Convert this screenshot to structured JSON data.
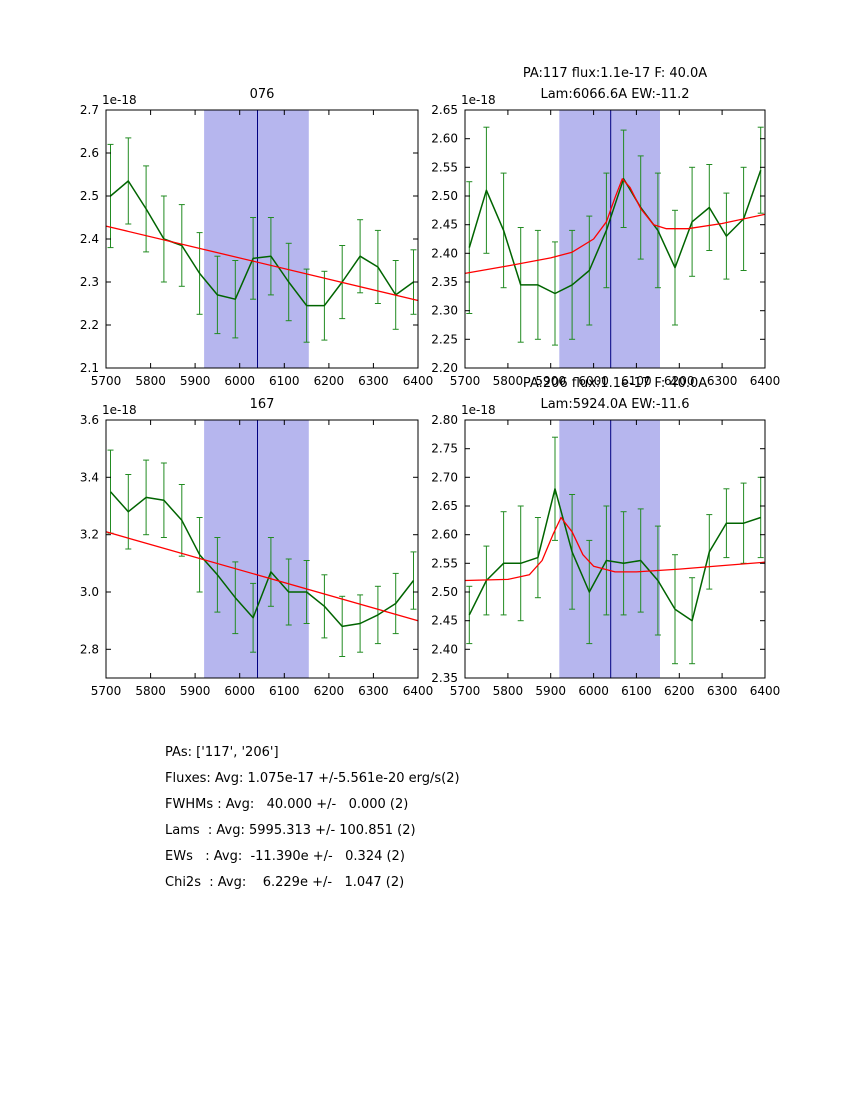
{
  "colors": {
    "spectrum": "#006400",
    "errorbar": "#228b22",
    "fit": "#ff0000",
    "band": "#b6b6ee",
    "centerline": "#000080",
    "axis": "#000000",
    "background": "#ffffff"
  },
  "summary": {
    "lines": [
      "PAs: ['117', '206']",
      "Fluxes: Avg: 1.075e-17 +/-5.561e-20 erg/s(2)",
      "FWHMs : Avg:   40.000 +/-   0.000 (2)",
      "Lams  : Avg: 5995.313 +/- 100.851 (2)",
      "EWs   : Avg:  -11.390e +/-   0.324 (2)",
      "Chi2s  : Avg:    6.229e +/-   1.047 (2)"
    ]
  },
  "chart_data": [
    {
      "id": "076",
      "type": "line",
      "titles": [
        "076"
      ],
      "offset": "1e-18",
      "xlim": [
        5700,
        6400
      ],
      "ylim": [
        2.1,
        2.7
      ],
      "xticks": [
        "5700",
        "5800",
        "5900",
        "6000",
        "6100",
        "6200",
        "6300",
        "6400"
      ],
      "yticks": [
        "2.1",
        "2.2",
        "2.3",
        "2.4",
        "2.5",
        "2.6",
        "2.7"
      ],
      "band": [
        5920,
        6155
      ],
      "centerline": 6040,
      "x": [
        5710,
        5750,
        5790,
        5830,
        5870,
        5910,
        5950,
        5990,
        6030,
        6070,
        6110,
        6150,
        6190,
        6230,
        6270,
        6310,
        6350,
        6390
      ],
      "spectrum": [
        2.5,
        2.535,
        2.47,
        2.4,
        2.385,
        2.32,
        2.27,
        2.26,
        2.355,
        2.36,
        2.3,
        2.245,
        2.245,
        2.3,
        2.36,
        2.335,
        2.27,
        2.3
      ],
      "errors": [
        0.12,
        0.1,
        0.1,
        0.1,
        0.095,
        0.095,
        0.09,
        0.09,
        0.095,
        0.09,
        0.09,
        0.085,
        0.08,
        0.085,
        0.085,
        0.085,
        0.08,
        0.075
      ],
      "fit": {
        "x": [
          5700,
          6400
        ],
        "y": [
          2.43,
          2.257
        ]
      }
    },
    {
      "id": "PA117",
      "type": "line",
      "titles": [
        "PA:117 flux:1.1e-17 F: 40.0A",
        "Lam:6066.6A EW:-11.2"
      ],
      "offset": "1e-18",
      "xlim": [
        5700,
        6400
      ],
      "ylim": [
        2.2,
        2.65
      ],
      "xticks": [
        "5700",
        "5800",
        "5900",
        "6000",
        "6100",
        "6200",
        "6300",
        "6400"
      ],
      "yticks": [
        "2.20",
        "2.25",
        "2.30",
        "2.35",
        "2.40",
        "2.45",
        "2.50",
        "2.55",
        "2.60",
        "2.65"
      ],
      "band": [
        5920,
        6155
      ],
      "centerline": 6040,
      "x": [
        5710,
        5750,
        5790,
        5830,
        5870,
        5910,
        5950,
        5990,
        6030,
        6070,
        6110,
        6150,
        6190,
        6230,
        6270,
        6310,
        6350,
        6390
      ],
      "spectrum": [
        2.41,
        2.51,
        2.44,
        2.345,
        2.345,
        2.33,
        2.345,
        2.37,
        2.44,
        2.53,
        2.48,
        2.44,
        2.375,
        2.455,
        2.48,
        2.43,
        2.46,
        2.545
      ],
      "errors": [
        0.115,
        0.11,
        0.1,
        0.1,
        0.095,
        0.09,
        0.095,
        0.095,
        0.1,
        0.085,
        0.09,
        0.1,
        0.1,
        0.095,
        0.075,
        0.075,
        0.09,
        0.075
      ],
      "fit": {
        "x": [
          5700,
          5800,
          5900,
          5950,
          6000,
          6030,
          6050,
          6067,
          6085,
          6110,
          6140,
          6170,
          6220,
          6300,
          6400
        ],
        "y": [
          2.365,
          2.378,
          2.392,
          2.402,
          2.425,
          2.455,
          2.497,
          2.53,
          2.515,
          2.478,
          2.45,
          2.443,
          2.443,
          2.452,
          2.468
        ]
      }
    },
    {
      "id": "167",
      "type": "line",
      "titles": [
        "167"
      ],
      "offset": "1e-18",
      "xlim": [
        5700,
        6400
      ],
      "ylim": [
        2.7,
        3.6
      ],
      "xticks": [
        "5700",
        "5800",
        "5900",
        "6000",
        "6100",
        "6200",
        "6300",
        "6400"
      ],
      "yticks": [
        "2.8",
        "3.0",
        "3.2",
        "3.4",
        "3.6"
      ],
      "band": [
        5920,
        6155
      ],
      "centerline": 6040,
      "x": [
        5710,
        5750,
        5790,
        5830,
        5870,
        5910,
        5950,
        5990,
        6030,
        6070,
        6110,
        6150,
        6190,
        6230,
        6270,
        6310,
        6350,
        6390
      ],
      "spectrum": [
        3.35,
        3.28,
        3.33,
        3.32,
        3.25,
        3.13,
        3.06,
        2.98,
        2.91,
        3.07,
        3.0,
        3.0,
        2.95,
        2.88,
        2.89,
        2.92,
        2.96,
        3.04
      ],
      "errors": [
        0.145,
        0.13,
        0.13,
        0.13,
        0.125,
        0.13,
        0.13,
        0.125,
        0.12,
        0.12,
        0.115,
        0.11,
        0.11,
        0.105,
        0.1,
        0.1,
        0.105,
        0.1
      ],
      "fit": {
        "x": [
          5700,
          6400
        ],
        "y": [
          3.21,
          2.9
        ]
      }
    },
    {
      "id": "PA206",
      "type": "line",
      "titles": [
        "PA:206 flux:1.1e-17 F: 40.0A",
        "Lam:5924.0A EW:-11.6"
      ],
      "offset": "1e-18",
      "xlim": [
        5700,
        6400
      ],
      "ylim": [
        2.35,
        2.8
      ],
      "xticks": [
        "5700",
        "5800",
        "5900",
        "6000",
        "6100",
        "6200",
        "6300",
        "6400"
      ],
      "yticks": [
        "2.35",
        "2.40",
        "2.45",
        "2.50",
        "2.55",
        "2.60",
        "2.65",
        "2.70",
        "2.75",
        "2.80"
      ],
      "band": [
        5920,
        6155
      ],
      "centerline": 6040,
      "x": [
        5710,
        5750,
        5790,
        5830,
        5870,
        5910,
        5950,
        5990,
        6030,
        6070,
        6110,
        6150,
        6190,
        6230,
        6270,
        6310,
        6350,
        6390
      ],
      "spectrum": [
        2.46,
        2.52,
        2.55,
        2.55,
        2.56,
        2.68,
        2.57,
        2.5,
        2.555,
        2.55,
        2.555,
        2.52,
        2.47,
        2.45,
        2.57,
        2.62,
        2.62,
        2.63
      ],
      "errors": [
        0.05,
        0.06,
        0.09,
        0.1,
        0.07,
        0.09,
        0.1,
        0.09,
        0.095,
        0.09,
        0.09,
        0.095,
        0.095,
        0.075,
        0.065,
        0.06,
        0.07,
        0.07
      ],
      "fit": {
        "x": [
          5700,
          5800,
          5850,
          5880,
          5905,
          5924,
          5950,
          5975,
          6000,
          6050,
          6100,
          6200,
          6300,
          6400
        ],
        "y": [
          2.52,
          2.522,
          2.53,
          2.555,
          2.6,
          2.63,
          2.605,
          2.565,
          2.545,
          2.535,
          2.535,
          2.54,
          2.546,
          2.552
        ]
      }
    }
  ]
}
